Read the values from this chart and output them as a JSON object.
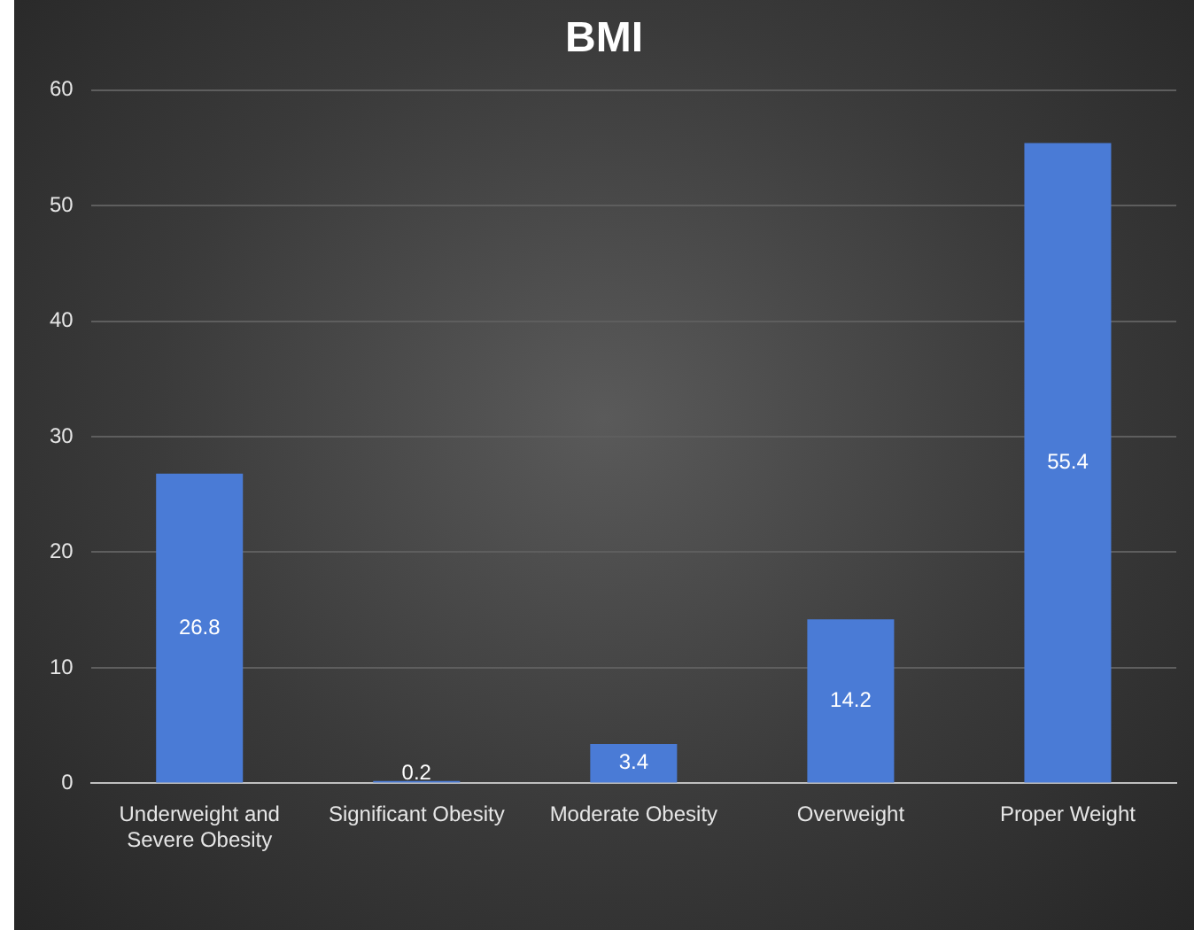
{
  "chart_data": {
    "type": "bar",
    "title": "BMI",
    "categories": [
      [
        "Underweight and",
        "Severe Obesity"
      ],
      "Significant Obesity",
      "Moderate Obesity",
      "Overweight",
      "Proper Weight"
    ],
    "values": [
      26.8,
      0.2,
      3.4,
      14.2,
      55.4
    ],
    "color": "#4a7bd6",
    "ylim": [
      0,
      60
    ],
    "yticks": [
      0,
      10,
      20,
      30,
      40,
      50,
      60
    ],
    "grid": "y",
    "data_labels": true,
    "legend": false
  }
}
